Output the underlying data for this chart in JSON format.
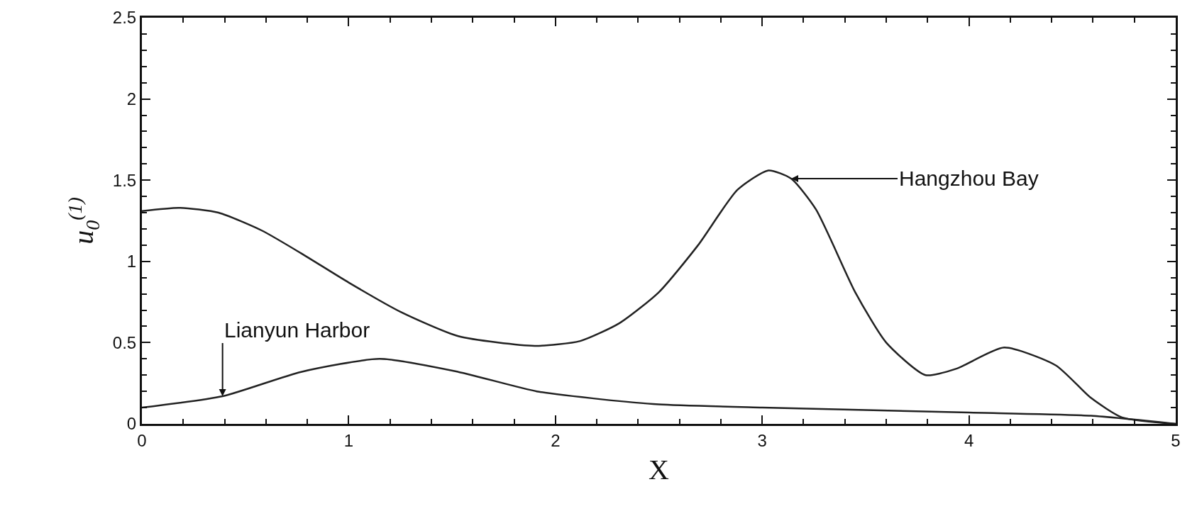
{
  "chart_data": {
    "type": "line",
    "xlabel": "X",
    "ylabel": "u$_{0}$$^{(1)}$",
    "xlim": [
      0,
      5
    ],
    "ylim": [
      0,
      2.5
    ],
    "xticks": [
      0,
      1,
      2,
      3,
      4,
      5
    ],
    "yticks": [
      0,
      0.5,
      1,
      1.5,
      2,
      2.5
    ],
    "marker": "none",
    "line_style": "solid",
    "series": [
      {
        "color": "#222222",
        "x": [
          0,
          0.18,
          0.37,
          0.58,
          0.77,
          1.0,
          1.25,
          1.53,
          1.9,
          2.12,
          2.31,
          2.5,
          2.69,
          2.88,
          3.03,
          3.14,
          3.26,
          3.45,
          3.6,
          3.79,
          3.94,
          4.17,
          4.42,
          4.59,
          4.74,
          5.0
        ],
        "values": [
          1.31,
          1.33,
          1.3,
          1.19,
          1.05,
          0.87,
          0.69,
          0.54,
          0.48,
          0.51,
          0.62,
          0.81,
          1.1,
          1.44,
          1.56,
          1.51,
          1.32,
          0.81,
          0.5,
          0.3,
          0.34,
          0.47,
          0.36,
          0.16,
          0.04,
          0.0
        ]
      },
      {
        "color": "#222222",
        "x": [
          0,
          0.39,
          0.77,
          1.15,
          1.53,
          1.91,
          2.23,
          2.5,
          3.0,
          4.0,
          4.59,
          5.0
        ],
        "values": [
          0.1,
          0.17,
          0.32,
          0.4,
          0.32,
          0.2,
          0.15,
          0.12,
          0.1,
          0.07,
          0.05,
          0.0
        ]
      }
    ],
    "annotations": [
      {
        "text": "Lianyun Harbor",
        "x": 0.39,
        "y": 0.17
      },
      {
        "text": "Hangzhou Bay",
        "x": 3.14,
        "y": 1.51
      }
    ]
  }
}
